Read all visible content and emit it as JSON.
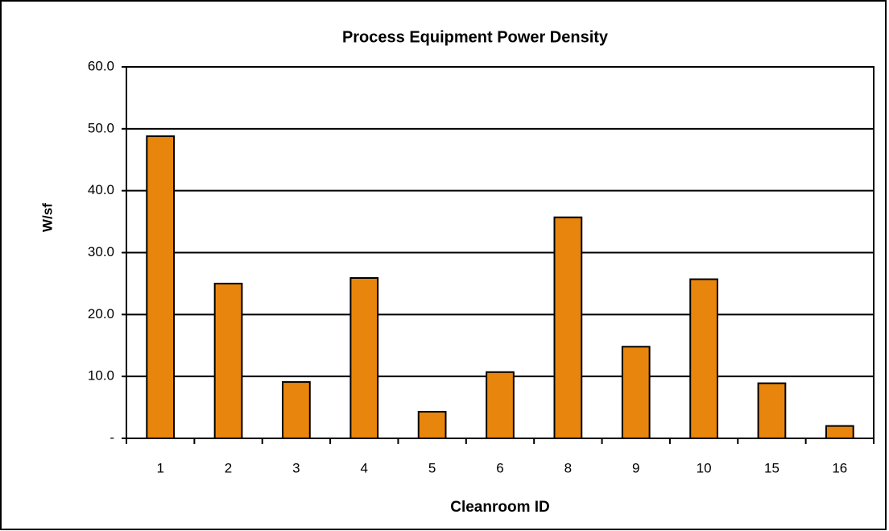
{
  "chart_data": {
    "type": "bar",
    "title": "Process Equipment Power Density",
    "x_label": "Cleanroom ID",
    "y_label": "W/sf",
    "categories": [
      "1",
      "2",
      "3",
      "4",
      "5",
      "6",
      "8",
      "9",
      "10",
      "15",
      "16"
    ],
    "values": [
      48.8,
      25.0,
      9.1,
      25.9,
      4.3,
      10.7,
      35.7,
      14.8,
      25.7,
      8.9,
      2.0
    ],
    "color": "#e8850c",
    "ylim": [
      0,
      60
    ],
    "yticks": [
      {
        "value": 0,
        "label": "-"
      },
      {
        "value": 10,
        "label": "10.0"
      },
      {
        "value": 20,
        "label": "20.0"
      },
      {
        "value": 30,
        "label": "30.0"
      },
      {
        "value": 40,
        "label": "40.0"
      },
      {
        "value": 50,
        "label": "50.0"
      },
      {
        "value": 60,
        "label": "60.0"
      }
    ],
    "grid": true
  }
}
